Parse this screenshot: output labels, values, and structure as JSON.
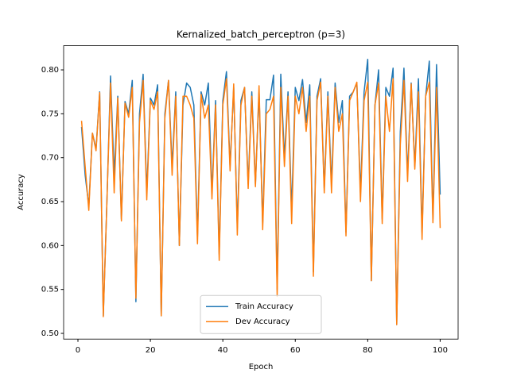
{
  "chart_data": {
    "type": "line",
    "title": "Kernalized_batch_perceptron (p=3)",
    "xlabel": "Epoch",
    "ylabel": "Accuracy",
    "x": [
      1,
      2,
      3,
      4,
      5,
      6,
      7,
      8,
      9,
      10,
      11,
      12,
      13,
      14,
      15,
      16,
      17,
      18,
      19,
      20,
      21,
      22,
      23,
      24,
      25,
      26,
      27,
      28,
      29,
      30,
      31,
      32,
      33,
      34,
      35,
      36,
      37,
      38,
      39,
      40,
      41,
      42,
      43,
      44,
      45,
      46,
      47,
      48,
      49,
      50,
      51,
      52,
      53,
      54,
      55,
      56,
      57,
      58,
      59,
      60,
      61,
      62,
      63,
      64,
      65,
      66,
      67,
      68,
      69,
      70,
      71,
      72,
      73,
      74,
      75,
      76,
      77,
      78,
      79,
      80,
      81,
      82,
      83,
      84,
      85,
      86,
      87,
      88,
      89,
      90,
      91,
      92,
      93,
      94,
      95,
      96,
      97,
      98,
      99,
      100
    ],
    "series": [
      {
        "name": "Train Accuracy",
        "color": "#1f77b4",
        "values": [
          0.735,
          0.68,
          0.645,
          0.728,
          0.71,
          0.775,
          0.52,
          0.65,
          0.793,
          0.68,
          0.77,
          0.63,
          0.764,
          0.75,
          0.788,
          0.536,
          0.75,
          0.795,
          0.66,
          0.768,
          0.76,
          0.783,
          0.52,
          0.75,
          0.788,
          0.69,
          0.775,
          0.6,
          0.76,
          0.785,
          0.78,
          0.76,
          0.61,
          0.775,
          0.76,
          0.785,
          0.66,
          0.765,
          0.59,
          0.765,
          0.798,
          0.69,
          0.78,
          0.62,
          0.765,
          0.78,
          0.67,
          0.775,
          0.67,
          0.775,
          0.625,
          0.766,
          0.766,
          0.794,
          0.55,
          0.795,
          0.7,
          0.775,
          0.64,
          0.78,
          0.765,
          0.789,
          0.74,
          0.783,
          0.57,
          0.77,
          0.79,
          0.665,
          0.775,
          0.67,
          0.785,
          0.74,
          0.765,
          0.615,
          0.77,
          0.775,
          0.785,
          0.66,
          0.775,
          0.812,
          0.56,
          0.76,
          0.8,
          0.63,
          0.78,
          0.77,
          0.802,
          0.51,
          0.73,
          0.802,
          0.68,
          0.785,
          0.69,
          0.79,
          0.615,
          0.77,
          0.81,
          0.63,
          0.806,
          0.658
        ]
      },
      {
        "name": "Dev Accuracy",
        "color": "#ff7f0e",
        "values": [
          0.742,
          0.69,
          0.64,
          0.728,
          0.708,
          0.774,
          0.519,
          0.65,
          0.785,
          0.66,
          0.768,
          0.628,
          0.762,
          0.746,
          0.78,
          0.54,
          0.74,
          0.788,
          0.652,
          0.765,
          0.755,
          0.775,
          0.52,
          0.745,
          0.788,
          0.68,
          0.77,
          0.6,
          0.77,
          0.77,
          0.76,
          0.745,
          0.602,
          0.772,
          0.745,
          0.76,
          0.653,
          0.76,
          0.583,
          0.76,
          0.79,
          0.685,
          0.784,
          0.612,
          0.76,
          0.78,
          0.665,
          0.77,
          0.667,
          0.782,
          0.618,
          0.75,
          0.755,
          0.77,
          0.542,
          0.78,
          0.69,
          0.77,
          0.625,
          0.77,
          0.75,
          0.78,
          0.73,
          0.77,
          0.565,
          0.765,
          0.786,
          0.66,
          0.77,
          0.66,
          0.78,
          0.73,
          0.75,
          0.611,
          0.765,
          0.775,
          0.786,
          0.65,
          0.765,
          0.786,
          0.56,
          0.76,
          0.785,
          0.625,
          0.77,
          0.73,
          0.79,
          0.51,
          0.715,
          0.788,
          0.673,
          0.784,
          0.687,
          0.775,
          0.607,
          0.77,
          0.786,
          0.626,
          0.78,
          0.62
        ]
      }
    ],
    "xlim": [
      -3.95,
      104.95
    ],
    "xticks": [
      0,
      20,
      40,
      60,
      80,
      100
    ],
    "ylim": [
      0.4935,
      0.8275
    ],
    "yticks": [
      {
        "value": 0.5,
        "label": "0.50"
      },
      {
        "value": 0.55,
        "label": "0.55"
      },
      {
        "value": 0.6,
        "label": "0.60"
      },
      {
        "value": 0.65,
        "label": "0.65"
      },
      {
        "value": 0.7,
        "label": "0.70"
      },
      {
        "value": 0.75,
        "label": "0.75"
      },
      {
        "value": 0.8,
        "label": "0.80"
      }
    ],
    "legend": "lower center"
  }
}
